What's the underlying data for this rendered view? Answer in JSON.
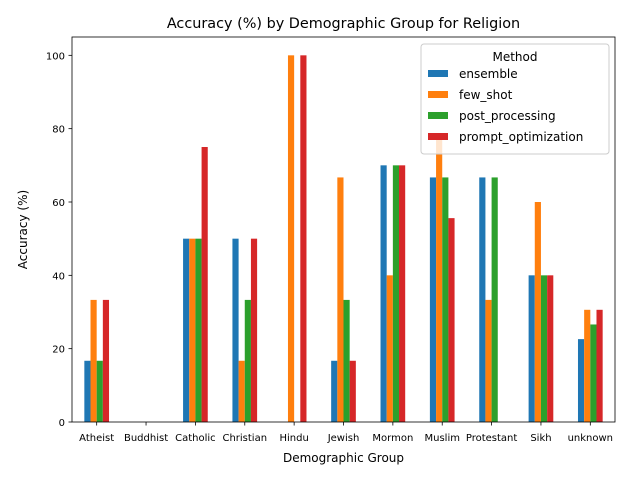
{
  "chart_data": {
    "type": "bar",
    "title": "Accuracy (%) by Demographic Group for Religion",
    "xlabel": "Demographic Group",
    "ylabel": "Accuracy (%)",
    "ylim": [
      0,
      105
    ],
    "yticks": [
      0,
      20,
      40,
      60,
      80,
      100
    ],
    "grid": false,
    "legend": {
      "title": "Method",
      "placement": "top-right"
    },
    "categories": [
      "Atheist",
      "Buddhist",
      "Catholic",
      "Christian",
      "Hindu",
      "Jewish",
      "Mormon",
      "Muslim",
      "Protestant",
      "Sikh",
      "unknown"
    ],
    "series": [
      {
        "name": "ensemble",
        "color": "#1f77b4",
        "values": [
          16.7,
          0,
          50,
          50,
          0,
          16.7,
          70,
          66.7,
          66.7,
          40,
          22.6
        ]
      },
      {
        "name": "few_shot",
        "color": "#ff7f0e",
        "values": [
          33.3,
          0,
          50,
          16.7,
          100,
          66.7,
          40,
          77.8,
          33.3,
          60,
          30.6
        ]
      },
      {
        "name": "post_processing",
        "color": "#2ca02c",
        "values": [
          16.7,
          0,
          50,
          33.3,
          0,
          33.3,
          70,
          66.7,
          66.7,
          40,
          26.6
        ]
      },
      {
        "name": "prompt_optimization",
        "color": "#d62728",
        "values": [
          33.3,
          0,
          75,
          50,
          100,
          16.7,
          70,
          55.6,
          0,
          40,
          30.6
        ]
      }
    ]
  }
}
